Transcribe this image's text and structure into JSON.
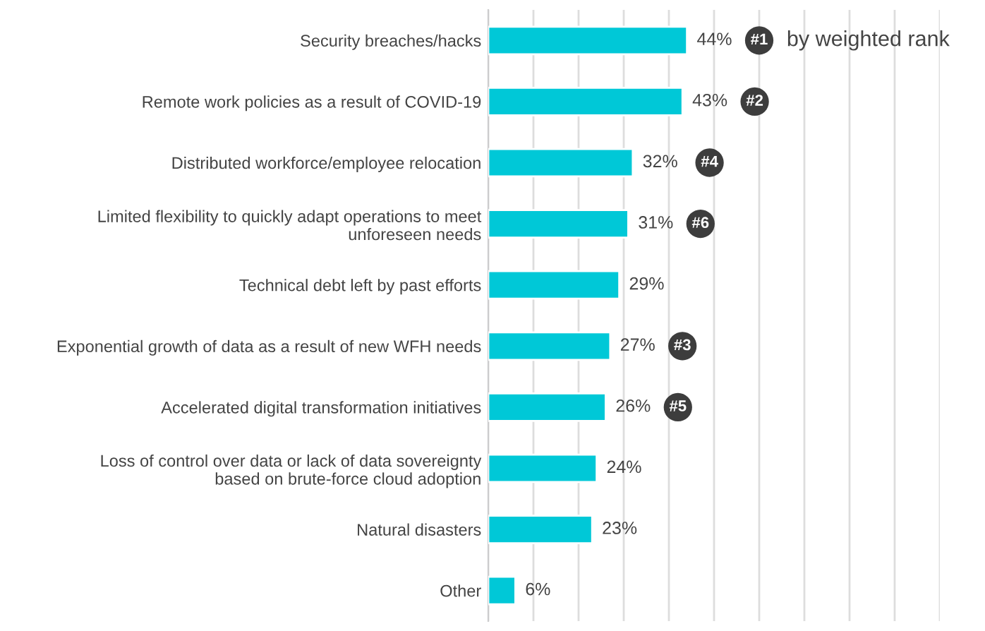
{
  "chart_data": {
    "type": "bar",
    "orientation": "horizontal",
    "categories": [
      "Security breaches/hacks",
      "Remote work policies as a result of COVID-19",
      "Distributed workforce/employee relocation",
      "Limited flexibility to quickly adapt operations to meet\nunforeseen needs",
      "Technical debt left by past efforts",
      "Exponential growth of data as a result of new WFH needs",
      "Accelerated digital transformation initiatives",
      "Loss of control over data or lack of data sovereignty\nbased on brute-force cloud adoption",
      "Natural disasters",
      "Other"
    ],
    "values": [
      44,
      43,
      32,
      31,
      29,
      27,
      26,
      24,
      23,
      6
    ],
    "value_labels": [
      "44%",
      "43%",
      "32%",
      "31%",
      "29%",
      "27%",
      "26%",
      "24%",
      "23%",
      "6%"
    ],
    "color": "#00c8d7",
    "xlim": [
      0,
      100
    ],
    "xticks": [
      {
        "value": 0,
        "label": null
      },
      {
        "value": 10,
        "label": null
      },
      {
        "value": 20,
        "label": null
      },
      {
        "value": 30,
        "label": null
      },
      {
        "value": 40,
        "label": null
      },
      {
        "value": 50,
        "label": null
      },
      {
        "value": 60,
        "label": null
      },
      {
        "value": 70,
        "label": null
      },
      {
        "value": 80,
        "label": null
      },
      {
        "value": 90,
        "label": null
      },
      {
        "value": 100,
        "label": null
      }
    ],
    "tick_labels": "y",
    "grid": "x",
    "legend": false,
    "annotations": [
      {
        "text": "#1",
        "x": 60,
        "y": "Security breaches/hacks"
      },
      {
        "text": "#2",
        "x": 59,
        "y": "Remote work policies as a result of COVID-19"
      },
      {
        "text": "#4",
        "x": 49,
        "y": "Distributed workforce/employee relocation"
      },
      {
        "text": "#6",
        "x": 47,
        "y": "Limited flexibility to quickly adapt operations to meet\nunforeseen needs"
      },
      {
        "text": "#3",
        "x": 43,
        "y": "Exponential growth of data as a result of new WFH needs"
      },
      {
        "text": "#5",
        "x": 42,
        "y": "Accelerated digital transformation initiatives"
      },
      "by weighted rank"
    ]
  }
}
